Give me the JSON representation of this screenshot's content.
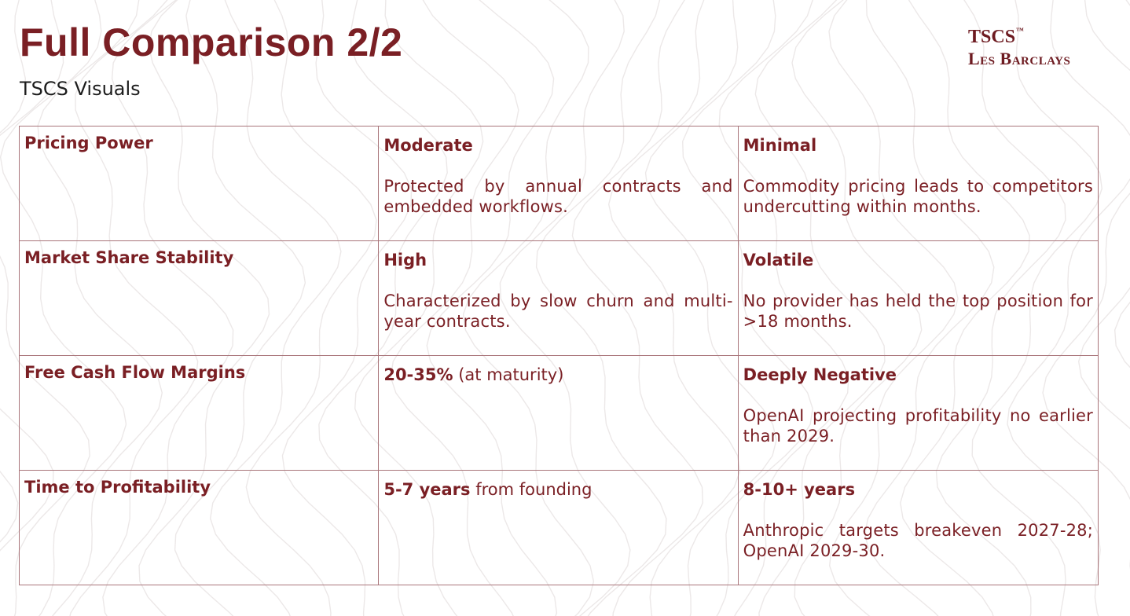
{
  "header": {
    "title": "Full Comparison 2/2",
    "subtitle": "TSCS Visuals"
  },
  "logo": {
    "line1": "TSCS",
    "trademark": "™",
    "line2": "Les Barclays"
  },
  "table": {
    "rows": [
      {
        "label": "Pricing Power",
        "col2": {
          "lead": "Moderate",
          "lead_rest": "",
          "desc": "Protected by annual contracts and embedded workflows."
        },
        "col3": {
          "lead": "Minimal",
          "lead_rest": "",
          "desc": "Commodity pricing leads to competitors undercutting within months."
        }
      },
      {
        "label": "Market Share Stability",
        "col2": {
          "lead": "High",
          "lead_rest": "",
          "desc": "Characterized by slow churn and multi-year contracts."
        },
        "col3": {
          "lead": "Volatile",
          "lead_rest": "",
          "desc": "No provider has held the top position for >18 months."
        }
      },
      {
        "label": "Free Cash Flow Margins",
        "col2": {
          "lead": "20-35%",
          "lead_rest": " (at maturity)",
          "desc": ""
        },
        "col3": {
          "lead": "Deeply Negative",
          "lead_rest": "",
          "desc": "OpenAI projecting profitability no earlier than 2029."
        }
      },
      {
        "label": "Time to Profitability",
        "col2": {
          "lead": "5-7 years",
          "lead_rest": " from founding",
          "desc": ""
        },
        "col3": {
          "lead": "8-10+ years",
          "lead_rest": "",
          "desc": "Anthropic targets breakeven 2027-28; OpenAI 2029-30."
        }
      }
    ]
  }
}
